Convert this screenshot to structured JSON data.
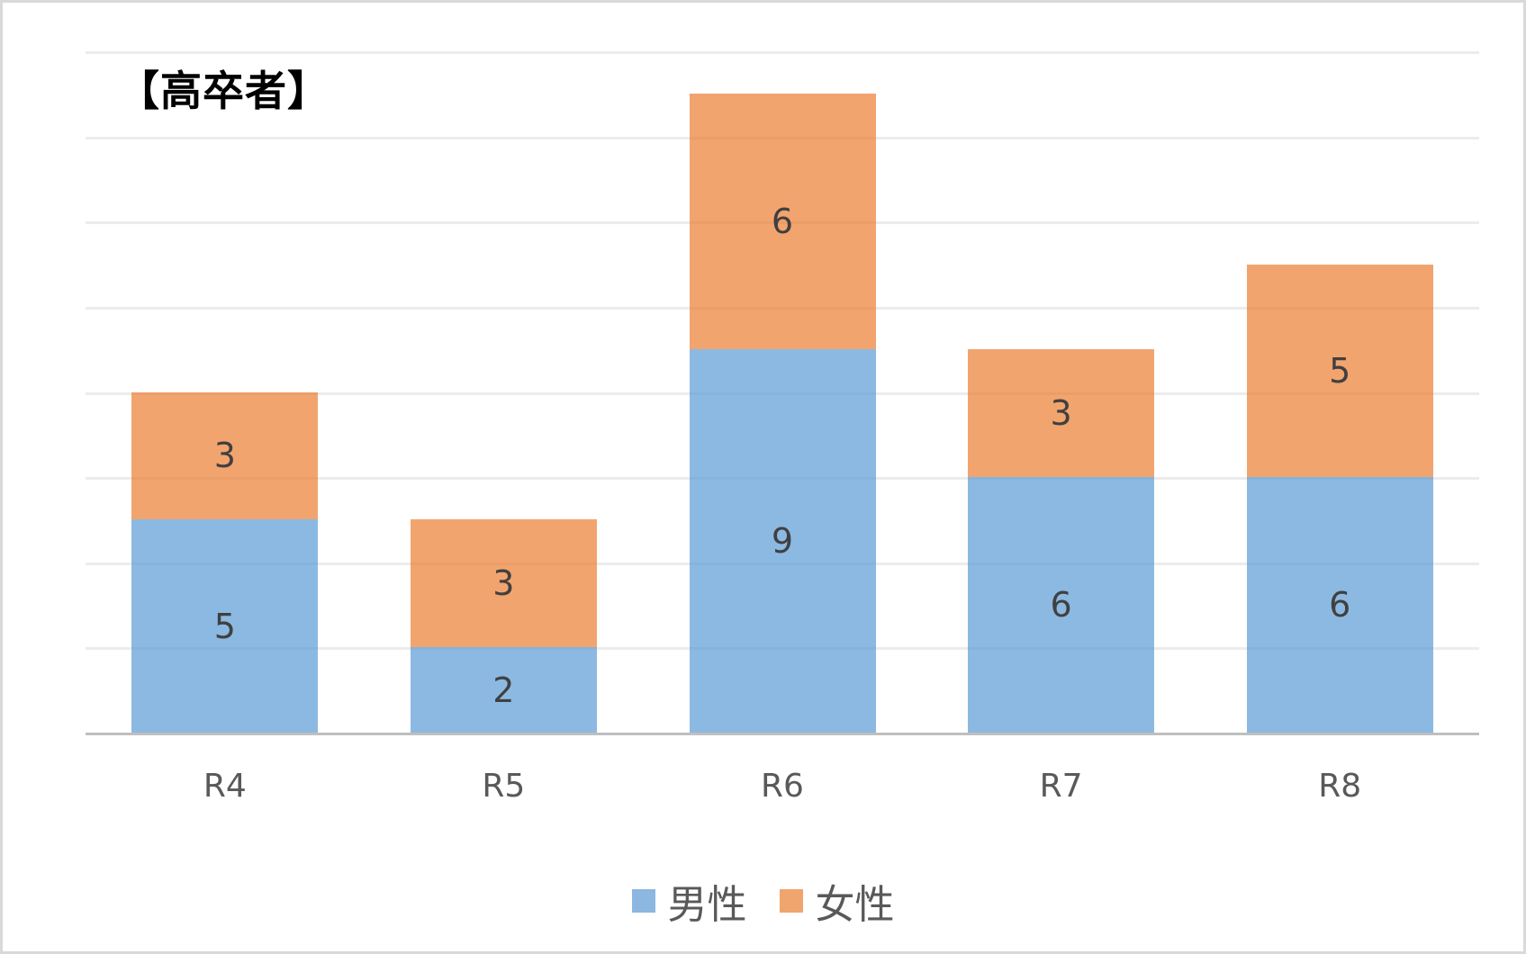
{
  "chart_data": {
    "type": "bar",
    "stacked": true,
    "title": "【高卒者】",
    "xlabel": "",
    "ylabel": "",
    "categories": [
      "R4",
      "R5",
      "R6",
      "R7",
      "R8"
    ],
    "series": [
      {
        "name": "男性",
        "color": "#8bb7e0",
        "values": [
          5,
          2,
          9,
          6,
          6
        ]
      },
      {
        "name": "女性",
        "color": "#f0a46e",
        "values": [
          3,
          3,
          6,
          3,
          5
        ]
      }
    ],
    "ylim": [
      0,
      16
    ],
    "gridlines": [
      2,
      4,
      6,
      8,
      10,
      12,
      14,
      16
    ],
    "grid": true,
    "y_axis_labels_visible": false,
    "legend_position": "bottom",
    "data_labels": true
  },
  "title": "【高卒者】",
  "legend": [
    {
      "label": "男性",
      "color": "#8bb7e0"
    },
    {
      "label": "女性",
      "color": "#f0a46e"
    }
  ]
}
